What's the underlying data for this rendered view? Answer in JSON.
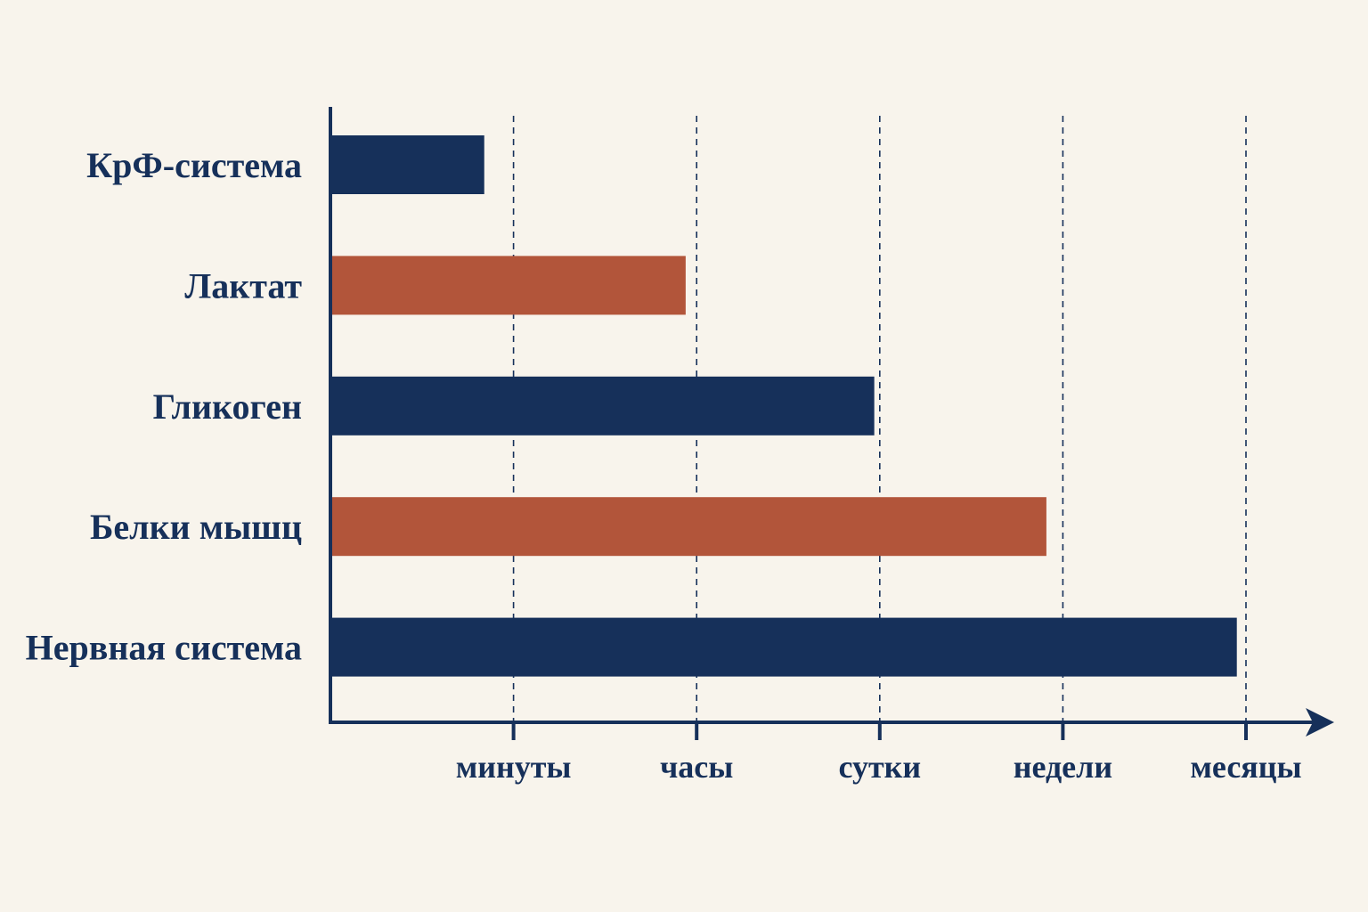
{
  "chart_data": {
    "type": "bar",
    "orientation": "horizontal",
    "title": "",
    "xlabel": "",
    "ylabel": "",
    "categories": [
      "КрФ-система",
      "Лактат",
      "Гликоген",
      "Белки мышц",
      "Нервная система"
    ],
    "x_scale": "ordinal",
    "x_ticks": [
      "минуты",
      "часы",
      "сутки",
      "недели",
      "месяцы"
    ],
    "values": [
      0.84,
      1.94,
      2.97,
      3.91,
      4.95
    ],
    "value_units": "tick index (0 = axis origin, 1 = минуты, 2 = часы, 3 = сутки, 4 = недели, 5 = месяцы)",
    "bar_colors": [
      "#16305a",
      "#b2553a",
      "#16305a",
      "#b2553a",
      "#16305a"
    ],
    "grid": "vertical dashed lines at each tick",
    "axis_color": "#16305a",
    "text_color": "#16305a",
    "legend": "none"
  }
}
